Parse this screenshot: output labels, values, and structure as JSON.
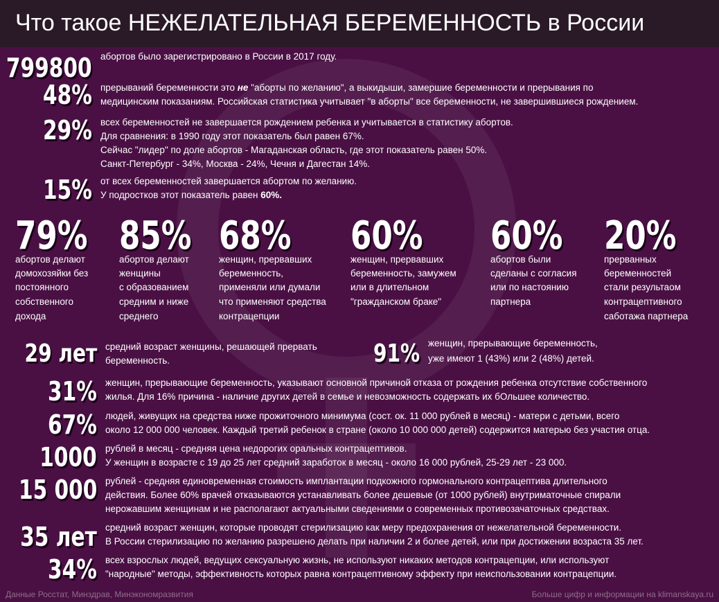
{
  "header": {
    "title": "Что такое НЕЖЕЛАТЕЛЬНАЯ БЕРЕМЕННОСТЬ в России"
  },
  "top_facts": [
    {
      "number": "799800",
      "lines": [
        "абортов было зарегистрировано в России в 2017 году."
      ]
    },
    {
      "number": "48%",
      "lines": [
        {
          "before": "прерываний беременности это ",
          "emphasis": "не",
          "after": " \"аборты по желанию\", а выкидыши, замершие беременности и прерывания по"
        },
        "медицинским показаниям. Российская статистика учитывает \"в аборты\" все беременности, не завершившиеся рождением."
      ]
    },
    {
      "number": "29%",
      "lines": [
        "всех беременностей не завершается рождением ребенка и учитывается в статистику абортов.",
        "Для сравнения: в 1990 году этот показатель был равен 67%.",
        "Сейчас \"лидер\" по доле абортов - Магаданская область, где этот показатель равен 50%.",
        "Санкт-Петербург - 34%, Москва - 24%, Чечня и Дагестан 14%."
      ]
    },
    {
      "number": "15%",
      "lines": [
        "от всех беременностей завершается абортом по желанию.",
        {
          "before": "У подростков этот показатель равен ",
          "emphasis": "60%."
        }
      ]
    }
  ],
  "columns": [
    {
      "number": "79%",
      "lines": [
        "абортов делают",
        "домохозяйки без",
        "постоянного",
        "собственного",
        "дохода"
      ]
    },
    {
      "number": "85%",
      "lines": [
        "абортов делают",
        "женщины",
        "с образованием",
        "средним и ниже",
        "среднего"
      ]
    },
    {
      "number": "68%",
      "lines": [
        "женщин, прервавших",
        "беременность,",
        "применяли или думали",
        "что применяют средства",
        "контрацепции"
      ]
    },
    {
      "number": "60%",
      "lines": [
        "женщин, прервавших",
        "беременность, замужем",
        "или в длительном",
        "\"гражданском браке\""
      ]
    },
    {
      "number": "60%",
      "lines": [
        "абортов были",
        "сделаны с согласия",
        "или по настоянию",
        "партнера"
      ]
    },
    {
      "number": "20%",
      "lines": [
        "прерванных",
        "беременностей",
        "стали результаом",
        "контрацептивного",
        "саботажа партнера"
      ]
    }
  ],
  "age_fact": {
    "number": "29 лет",
    "lines": [
      "средний возраст женщины, решающей прервать",
      "беременность."
    ]
  },
  "children_fact": {
    "number": "91%",
    "lines": [
      "женщин, прерывающие беременность,",
      "уже имеют 1 (43%) или 2 (48%) детей."
    ]
  },
  "bottom_facts": [
    {
      "number": "31%",
      "lines": [
        "женщин, прерывающие беременность, указывают основной причиной отказа от рождения ребенка отсутствие собственного",
        "жилья. Для 16% причина - наличие других детей в семье и невозможность содержать их бОльшее количество."
      ]
    },
    {
      "number": "67%",
      "lines": [
        "людей, живущих на средства ниже прожиточного минимума (сост. ок. 11 000 рублей в месяц) - матери с детьми, всего",
        "около 12 000 000 человек. Каждый третий ребенок в стране (около 10 000 000 детей) содержится матерью без участия отца."
      ]
    },
    {
      "number": "1000",
      "lines": [
        "рублей в месяц - средняя цена недорогих оральных контрацептивов.",
        "У женщин в возрасте с 19 до 25 лет средний заработок в месяц - около 16 000 рублей, 25-29 лет - 23 000."
      ]
    },
    {
      "number": "15 000",
      "lines": [
        "рублей - средняя единовременная стоимость имплантации подкожного гормонального контрацептива длительного",
        "действия. Более 60% врачей отказываются устанавливать более дешевые (от 1000 рублей) внутриматочные спирали",
        "нерожавшим женщинам и не располагают актуальными сведениями о современных противозачаточных средствах."
      ]
    },
    {
      "number": "35 лет",
      "lines": [
        "средний возраст женщин, которые проводят стерилизацию как меру предохранения от нежелательной беременности.",
        "В России стерилизацию по желанию разрешено делать при наличии 2 и более детей, или при достижении возраста 35 лет."
      ]
    },
    {
      "number": "34%",
      "lines": [
        "всех взрослых людей, ведущих сексуальную жизнь, не используют никаких методов контрацепции, или используют",
        "\"народные\" методы, эффективность которых равна контрацептивному эффекту при неиспользовании контрацепции."
      ]
    }
  ],
  "footer": {
    "sources": "Данные Росстат, Минздрав, Минэкономразвития",
    "more": "Больше цифр и информации на klimanskaya.ru"
  }
}
